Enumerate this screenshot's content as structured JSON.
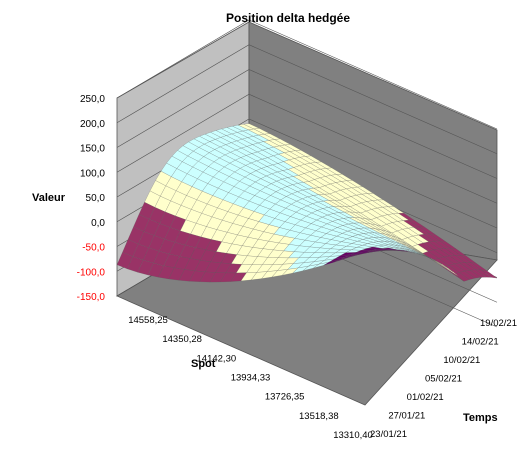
{
  "chart_data": {
    "type": "surface",
    "title": "Position delta hedgée",
    "zlabel": "Valeur",
    "xlabel": "Spot",
    "ylabel": "Temps",
    "z_ticks": [
      "250,0",
      "200,0",
      "150,0",
      "100,0",
      "50,0",
      "0,0",
      "-50,0",
      "-100,0",
      "-150,0"
    ],
    "z_tick_values": [
      250,
      200,
      150,
      100,
      50,
      0,
      -50,
      -100,
      -150
    ],
    "zlim": [
      -150,
      250
    ],
    "negative_tick_color": "#ff0000",
    "spot_ticks": [
      "14558,25",
      "14350,28",
      "14142,30",
      "13934,33",
      "13726,35",
      "13518,38",
      "13310,40"
    ],
    "time_ticks": [
      "23/01/21",
      "27/01/21",
      "01/02/21",
      "05/02/21",
      "10/02/21",
      "14/02/21",
      "19/02/21"
    ],
    "bands": [
      {
        "range": [
          -150,
          -100
        ],
        "color": "#993366"
      },
      {
        "range": [
          -100,
          -50
        ],
        "color": "#993366"
      },
      {
        "range": [
          -50,
          0
        ],
        "color": "#993366"
      },
      {
        "range": [
          0,
          50
        ],
        "color": "#ffffcc"
      },
      {
        "range": [
          50,
          100
        ],
        "color": "#ccffff"
      },
      {
        "range": [
          100,
          150
        ],
        "color": "#660066"
      },
      {
        "range": [
          150,
          200
        ],
        "color": "#ff8080"
      },
      {
        "range": [
          200,
          250
        ],
        "color": "#9999ff"
      }
    ],
    "grid": true,
    "walls": {
      "side": "#c0c0c0",
      "back": "#808080",
      "floor": "#808080"
    }
  }
}
